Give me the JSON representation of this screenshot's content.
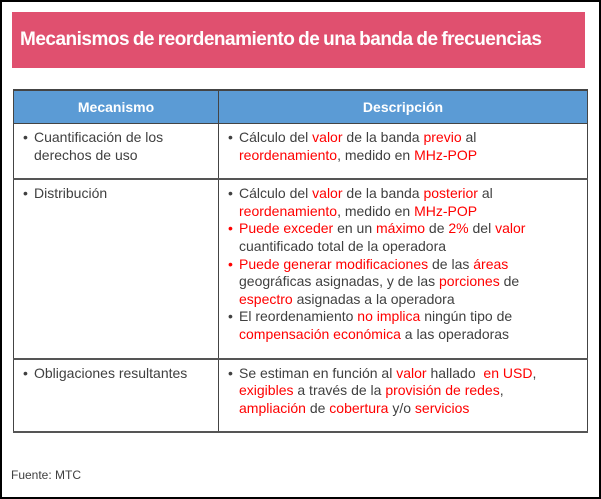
{
  "title": "Mecanismos de reordenamiento de una banda de frecuencias",
  "colors": {
    "title_bg": "#e0506f",
    "header_bg": "#5b9bd5",
    "highlight": "#ff0000",
    "text": "#404040"
  },
  "table": {
    "headers": [
      "Mecanismo",
      "Descripción"
    ],
    "rows": [
      {
        "mechanism": [
          "Cuantificación de los",
          "derechos de uso"
        ],
        "bullets": [
          {
            "red_bullet": false,
            "lines": [
              [
                [
                  "Cálculo del ",
                  0
                ],
                [
                  "valor",
                  1
                ],
                [
                  " de la banda ",
                  0
                ],
                [
                  "previo",
                  1
                ],
                [
                  " al",
                  0
                ]
              ],
              [
                [
                  "reordenamiento",
                  1
                ],
                [
                  ", medido en ",
                  0
                ],
                [
                  "MHz-POP",
                  1
                ]
              ]
            ]
          }
        ]
      },
      {
        "mechanism": [
          "Distribución"
        ],
        "bullets": [
          {
            "red_bullet": false,
            "lines": [
              [
                [
                  "Cálculo del ",
                  0
                ],
                [
                  "valor",
                  1
                ],
                [
                  " de la banda ",
                  0
                ],
                [
                  "posterior",
                  1
                ],
                [
                  " al",
                  0
                ]
              ],
              [
                [
                  "reordenamiento",
                  1
                ],
                [
                  ", medido en ",
                  0
                ],
                [
                  "MHz-POP",
                  1
                ]
              ]
            ]
          },
          {
            "red_bullet": true,
            "lines": [
              [
                [
                  "Puede exceder",
                  1
                ],
                [
                  " en un ",
                  0
                ],
                [
                  "máximo",
                  1
                ],
                [
                  " de ",
                  0
                ],
                [
                  "2%",
                  1
                ],
                [
                  " del ",
                  0
                ],
                [
                  "valor",
                  1
                ]
              ],
              [
                [
                  "cuantificado total de la operadora",
                  0
                ]
              ]
            ]
          },
          {
            "red_bullet": true,
            "lines": [
              [
                [
                  "Puede generar modificaciones",
                  1
                ],
                [
                  " de las ",
                  0
                ],
                [
                  "áreas",
                  1
                ]
              ],
              [
                [
                  "geográficas asignadas, y de las ",
                  0
                ],
                [
                  "porciones",
                  1
                ],
                [
                  " de",
                  0
                ]
              ],
              [
                [
                  "espectro",
                  1
                ],
                [
                  " asignadas a la operadora",
                  0
                ]
              ]
            ]
          },
          {
            "red_bullet": false,
            "lines": [
              [
                [
                  "El reordenamiento ",
                  0
                ],
                [
                  "no implica",
                  1
                ],
                [
                  " ningún tipo de",
                  0
                ]
              ],
              [
                [
                  "compensación económica",
                  1
                ],
                [
                  " a las operadoras",
                  0
                ]
              ]
            ]
          }
        ]
      },
      {
        "mechanism": [
          "Obligaciones resultantes"
        ],
        "bullets": [
          {
            "red_bullet": false,
            "lines": [
              [
                [
                  "Se estiman en función al ",
                  0
                ],
                [
                  "valor",
                  1
                ],
                [
                  " hallado ",
                  0
                ],
                [
                  " en USD",
                  1
                ],
                [
                  ",",
                  0
                ]
              ],
              [
                [
                  "exigibles",
                  1
                ],
                [
                  " a través de la ",
                  0
                ],
                [
                  "provisión de redes",
                  1
                ],
                [
                  ",",
                  0
                ]
              ],
              [
                [
                  "ampliación",
                  1
                ],
                [
                  " de ",
                  0
                ],
                [
                  "cobertura",
                  1
                ],
                [
                  " y/o ",
                  0
                ],
                [
                  "servicios",
                  1
                ]
              ]
            ]
          }
        ]
      }
    ]
  },
  "source": "Fuente: MTC"
}
